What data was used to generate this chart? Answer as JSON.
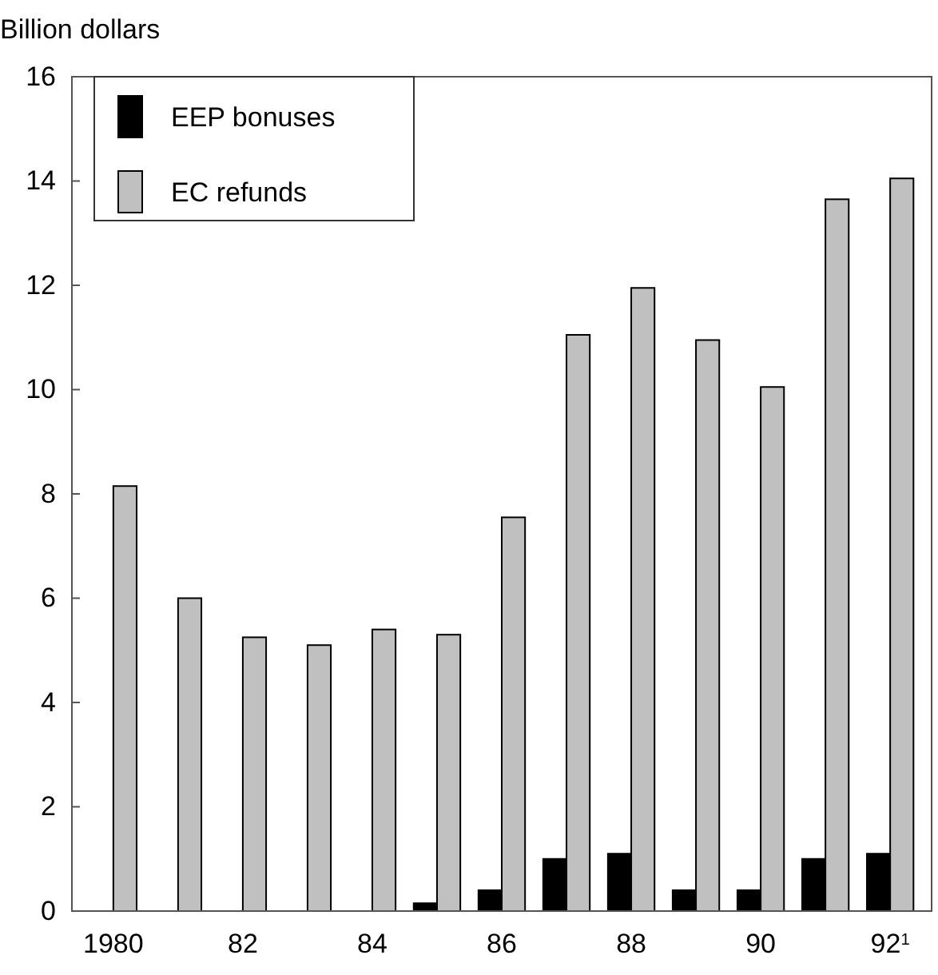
{
  "chart_data": {
    "type": "bar",
    "ylabel": "Billion dollars",
    "categories": [
      "1980",
      null,
      "82",
      null,
      "84",
      null,
      "86",
      null,
      "88",
      null,
      "90",
      null,
      "92$^{1}$"
    ],
    "series": [
      {
        "name": "EEP bonuses",
        "color": "#000000",
        "values": [
          null,
          null,
          null,
          null,
          null,
          0.15,
          0.4,
          1.0,
          1.1,
          0.4,
          0.4,
          1.0,
          1.1
        ]
      },
      {
        "name": "EC refunds",
        "color": "#c0c0c0",
        "values": [
          8.15,
          6.0,
          5.25,
          5.1,
          5.4,
          5.3,
          7.55,
          11.05,
          11.95,
          10.95,
          10.05,
          13.65,
          14.05
        ]
      }
    ],
    "ylim": [
      0,
      16
    ],
    "yticks": [
      0,
      2,
      4,
      6,
      8,
      10,
      12,
      14,
      16
    ],
    "grid": false,
    "legend": "top left"
  }
}
